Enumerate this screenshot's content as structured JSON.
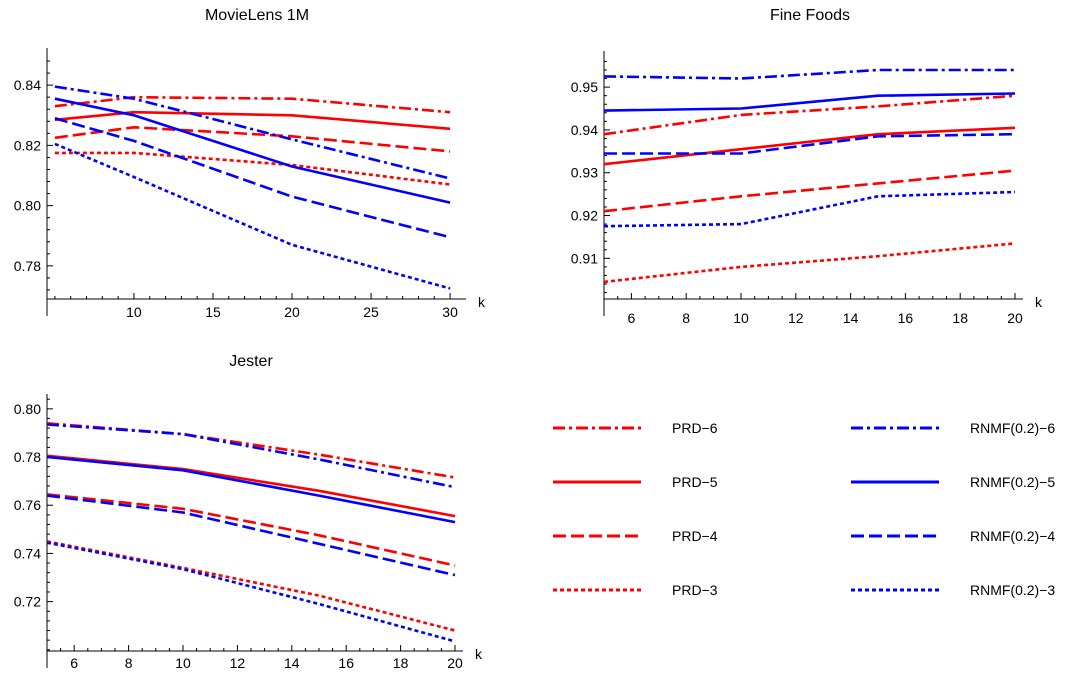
{
  "chart_data": [
    {
      "type": "line",
      "title": "MovieLens 1M",
      "xlabel": "k",
      "ylabel": "",
      "xlim": [
        4.5,
        30.5
      ],
      "ylim": [
        0.769,
        0.851
      ],
      "x_ticks": [
        10,
        15,
        20,
        25,
        30
      ],
      "y_ticks": [
        0.78,
        0.8,
        0.82,
        0.84
      ],
      "y_decimals": 2,
      "x": [
        5,
        10,
        20,
        30
      ],
      "series": [
        {
          "name": "PRD−6",
          "values": [
            0.833,
            0.836,
            0.8355,
            0.831
          ]
        },
        {
          "name": "PRD−5",
          "values": [
            0.8285,
            0.831,
            0.83,
            0.8255
          ]
        },
        {
          "name": "PRD−4",
          "values": [
            0.8225,
            0.826,
            0.823,
            0.818
          ]
        },
        {
          "name": "PRD−3",
          "values": [
            0.8175,
            0.8175,
            0.8135,
            0.807
          ]
        },
        {
          "name": "RNMF(0.2)−6",
          "values": [
            0.8395,
            0.8355,
            0.822,
            0.809
          ]
        },
        {
          "name": "RNMF(0.2)−5",
          "values": [
            0.8355,
            0.83,
            0.813,
            0.801
          ]
        },
        {
          "name": "RNMF(0.2)−4",
          "values": [
            0.829,
            0.8215,
            0.803,
            0.7895
          ]
        },
        {
          "name": "RNMF(0.2)−3",
          "values": [
            0.8205,
            0.8095,
            0.787,
            0.7725
          ]
        }
      ]
    },
    {
      "type": "line",
      "title": "Fine Foods",
      "xlabel": "k",
      "ylabel": "",
      "xlim": [
        5,
        20
      ],
      "ylim": [
        0.9005,
        0.9575
      ],
      "x_ticks": [
        6,
        8,
        10,
        12,
        14,
        16,
        18,
        20
      ],
      "y_ticks": [
        0.91,
        0.92,
        0.93,
        0.94,
        0.95
      ],
      "y_decimals": 2,
      "x": [
        5,
        10,
        15,
        20
      ],
      "series": [
        {
          "name": "PRD−6",
          "values": [
            0.939,
            0.9435,
            0.9455,
            0.948
          ]
        },
        {
          "name": "PRD−5",
          "values": [
            0.932,
            0.9355,
            0.939,
            0.9405
          ]
        },
        {
          "name": "PRD−4",
          "values": [
            0.921,
            0.9245,
            0.9275,
            0.9305
          ]
        },
        {
          "name": "PRD−3",
          "values": [
            0.9045,
            0.908,
            0.9105,
            0.9135
          ]
        },
        {
          "name": "RNMF(0.2)−6",
          "values": [
            0.9525,
            0.952,
            0.954,
            0.954
          ]
        },
        {
          "name": "RNMF(0.2)−5",
          "values": [
            0.9445,
            0.945,
            0.948,
            0.9485
          ]
        },
        {
          "name": "RNMF(0.2)−4",
          "values": [
            0.9345,
            0.9345,
            0.9385,
            0.939
          ]
        },
        {
          "name": "RNMF(0.2)−3",
          "values": [
            0.9175,
            0.918,
            0.9245,
            0.9255
          ]
        }
      ]
    },
    {
      "type": "line",
      "title": "Jester",
      "xlabel": "k",
      "ylabel": "",
      "xlim": [
        5,
        20
      ],
      "ylim": [
        0.6995,
        0.8045
      ],
      "x_ticks": [
        6,
        8,
        10,
        12,
        14,
        16,
        18,
        20
      ],
      "y_ticks": [
        0.72,
        0.74,
        0.76,
        0.78,
        0.8
      ],
      "y_decimals": 2,
      "x": [
        5,
        10,
        15,
        20
      ],
      "series": [
        {
          "name": "PRD−6",
          "values": [
            0.794,
            0.7895,
            0.781,
            0.7715
          ]
        },
        {
          "name": "PRD−5",
          "values": [
            0.7805,
            0.775,
            0.766,
            0.7555
          ]
        },
        {
          "name": "PRD−4",
          "values": [
            0.7645,
            0.7585,
            0.7475,
            0.735
          ]
        },
        {
          "name": "PRD−3",
          "values": [
            0.745,
            0.734,
            0.7225,
            0.708
          ]
        },
        {
          "name": "RNMF(0.2)−6",
          "values": [
            0.7935,
            0.7895,
            0.779,
            0.7675
          ]
        },
        {
          "name": "RNMF(0.2)−5",
          "values": [
            0.78,
            0.7745,
            0.764,
            0.753
          ]
        },
        {
          "name": "RNMF(0.2)−4",
          "values": [
            0.764,
            0.757,
            0.744,
            0.731
          ]
        },
        {
          "name": "RNMF(0.2)−3",
          "values": [
            0.7445,
            0.7335,
            0.719,
            0.7035
          ]
        }
      ]
    }
  ],
  "legend": {
    "items": [
      {
        "label": "PRD−6",
        "color": "#ff0000",
        "style": "dash-dot"
      },
      {
        "label": "PRD−5",
        "color": "#ff0000",
        "style": "solid"
      },
      {
        "label": "PRD−4",
        "color": "#ff0000",
        "style": "dashed"
      },
      {
        "label": "PRD−3",
        "color": "#ff0000",
        "style": "dotted"
      },
      {
        "label": "RNMF(0.2)−6",
        "color": "#0000ff",
        "style": "dash-dot"
      },
      {
        "label": "RNMF(0.2)−5",
        "color": "#0000ff",
        "style": "solid"
      },
      {
        "label": "RNMF(0.2)−4",
        "color": "#0000ff",
        "style": "dashed"
      },
      {
        "label": "RNMF(0.2)−3",
        "color": "#0000ff",
        "style": "dotted"
      }
    ]
  }
}
